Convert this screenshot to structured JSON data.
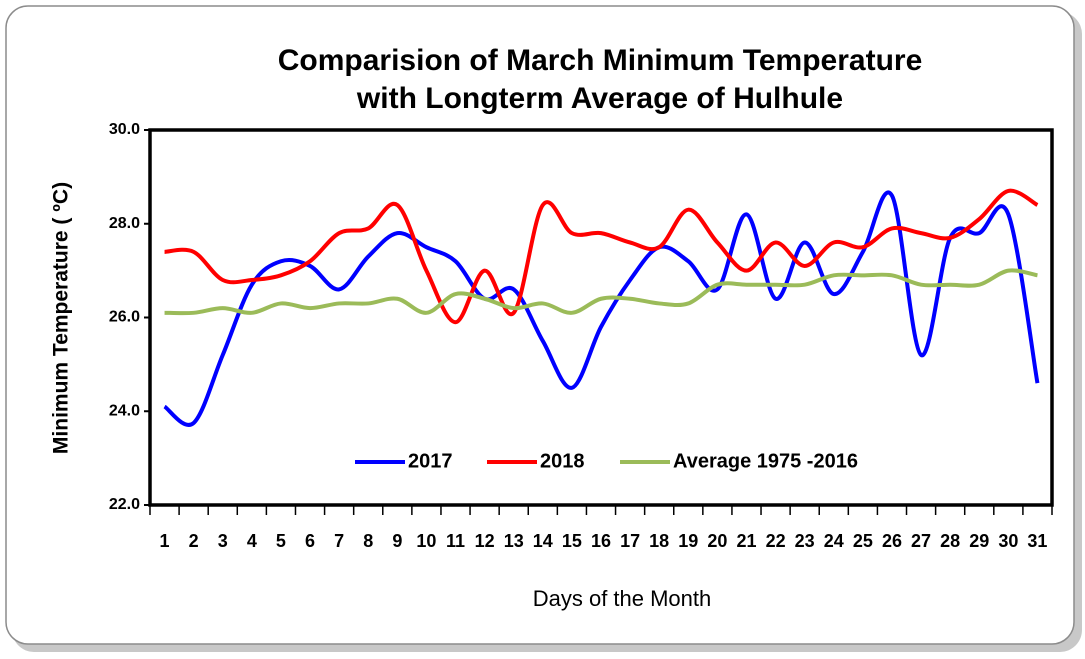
{
  "chart_data": {
    "type": "line",
    "title": [
      "Comparision of March Minimum Temperature",
      "with Longterm Average of Hulhule"
    ],
    "x_label": "Days of the Month",
    "y_label": "Minimum Temperature ( ºC)",
    "categories": [
      "1",
      "2",
      "3",
      "4",
      "5",
      "6",
      "7",
      "8",
      "9",
      "10",
      "11",
      "12",
      "13",
      "14",
      "15",
      "16",
      "17",
      "18",
      "19",
      "20",
      "21",
      "22",
      "23",
      "24",
      "25",
      "26",
      "27",
      "28",
      "29",
      "30",
      "31"
    ],
    "series": [
      {
        "name": "2017",
        "color": "#0000ff",
        "values": [
          24.1,
          23.75,
          25.2,
          26.7,
          27.2,
          27.1,
          26.6,
          27.3,
          27.8,
          27.5,
          27.2,
          26.4,
          26.6,
          25.5,
          24.5,
          25.8,
          26.8,
          27.5,
          27.2,
          26.6,
          28.2,
          26.4,
          27.6,
          26.5,
          27.4,
          28.6,
          25.2,
          27.7,
          27.8,
          28.2,
          24.6
        ]
      },
      {
        "name": "2018",
        "color": "#ff0000",
        "values": [
          27.4,
          27.4,
          26.8,
          26.8,
          26.9,
          27.2,
          27.8,
          27.9,
          28.4,
          27.0,
          25.9,
          27.0,
          26.1,
          28.4,
          27.8,
          27.8,
          27.6,
          27.5,
          28.3,
          27.6,
          27.0,
          27.6,
          27.1,
          27.6,
          27.5,
          27.9,
          27.8,
          27.7,
          28.1,
          28.7,
          28.4
        ]
      },
      {
        "name": "Average 1975 -2016",
        "color": "#9bbb59",
        "values": [
          26.1,
          26.1,
          26.2,
          26.1,
          26.3,
          26.2,
          26.3,
          26.3,
          26.4,
          26.1,
          26.5,
          26.4,
          26.2,
          26.3,
          26.1,
          26.4,
          26.4,
          26.3,
          26.3,
          26.7,
          26.7,
          26.7,
          26.7,
          26.9,
          26.9,
          26.9,
          26.7,
          26.7,
          26.7,
          27.0,
          26.9
        ]
      }
    ],
    "ylim": [
      22,
      30
    ],
    "yticks": [
      {
        "value": 22,
        "label": "22.0"
      },
      {
        "value": 24,
        "label": "24.0"
      },
      {
        "value": 26,
        "label": "26.0"
      },
      {
        "value": 28,
        "label": "28.0"
      },
      {
        "value": 30,
        "label": "30.0"
      }
    ],
    "legend": "bottom",
    "smooth": true
  }
}
